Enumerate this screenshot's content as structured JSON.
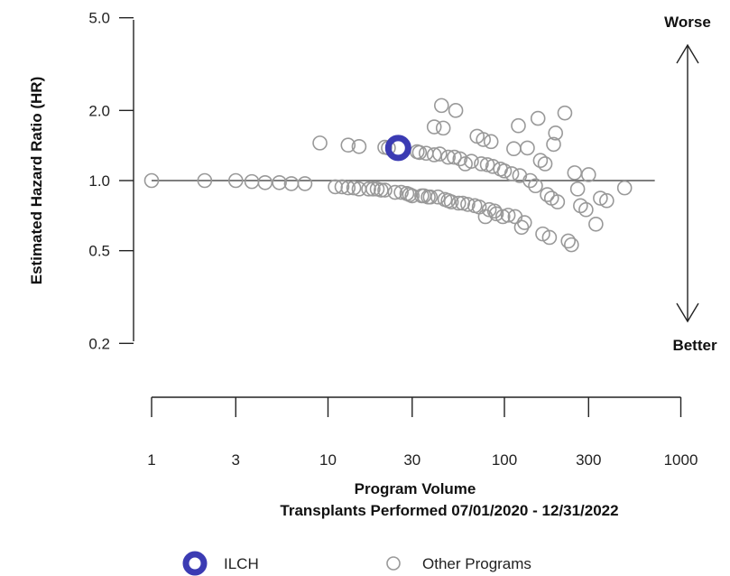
{
  "chart_data": {
    "type": "scatter",
    "x_scale": "log",
    "y_scale": "log",
    "ylabel": "Estimated Hazard Ratio (HR)",
    "xlabel": "Program Volume",
    "xlabel_sub": "Transplants Performed 07/01/2020 - 12/31/2022",
    "y_ticks": [
      {
        "value": 5.0,
        "label": "5.0"
      },
      {
        "value": 2.0,
        "label": "2.0"
      },
      {
        "value": 1.0,
        "label": "1.0"
      },
      {
        "value": 0.5,
        "label": "0.5"
      },
      {
        "value": 0.2,
        "label": "0.2"
      }
    ],
    "x_ticks": [
      {
        "value": 1,
        "label": "1"
      },
      {
        "value": 3,
        "label": "3"
      },
      {
        "value": 10,
        "label": "10"
      },
      {
        "value": 30,
        "label": "30"
      },
      {
        "value": 100,
        "label": "100"
      },
      {
        "value": 300,
        "label": "300"
      },
      {
        "value": 1000,
        "label": "1000"
      }
    ],
    "reference_line": {
      "y": 1.0,
      "x_from": 1,
      "x_to": 500
    },
    "annotation_top": "Worse",
    "annotation_bottom": "Better",
    "series": [
      {
        "name": "ILCH",
        "color": "#3b3bb3",
        "points": [
          {
            "x": 25,
            "y": 1.38
          }
        ]
      },
      {
        "name": "Other Programs",
        "color": "#999999",
        "points": [
          {
            "x": 1,
            "y": 1.0
          },
          {
            "x": 2,
            "y": 1.0
          },
          {
            "x": 3,
            "y": 1.0
          },
          {
            "x": 3.7,
            "y": 0.99
          },
          {
            "x": 4.4,
            "y": 0.98
          },
          {
            "x": 5.3,
            "y": 0.98
          },
          {
            "x": 6.2,
            "y": 0.97
          },
          {
            "x": 7.4,
            "y": 0.97
          },
          {
            "x": 9,
            "y": 1.45
          },
          {
            "x": 11,
            "y": 0.94
          },
          {
            "x": 12,
            "y": 0.94
          },
          {
            "x": 13,
            "y": 0.93
          },
          {
            "x": 13,
            "y": 1.42
          },
          {
            "x": 14,
            "y": 0.93
          },
          {
            "x": 15,
            "y": 0.92
          },
          {
            "x": 15,
            "y": 1.4
          },
          {
            "x": 17,
            "y": 0.92
          },
          {
            "x": 18,
            "y": 0.92
          },
          {
            "x": 19,
            "y": 0.92
          },
          {
            "x": 20,
            "y": 0.91
          },
          {
            "x": 21,
            "y": 0.91
          },
          {
            "x": 21,
            "y": 1.39
          },
          {
            "x": 22,
            "y": 1.38
          },
          {
            "x": 24,
            "y": 0.89
          },
          {
            "x": 26,
            "y": 0.89
          },
          {
            "x": 28,
            "y": 0.88
          },
          {
            "x": 29,
            "y": 0.87
          },
          {
            "x": 30,
            "y": 0.86
          },
          {
            "x": 32,
            "y": 1.33
          },
          {
            "x": 33,
            "y": 1.32
          },
          {
            "x": 34,
            "y": 0.86
          },
          {
            "x": 35,
            "y": 0.86
          },
          {
            "x": 36,
            "y": 1.31
          },
          {
            "x": 37,
            "y": 0.85
          },
          {
            "x": 38,
            "y": 0.85
          },
          {
            "x": 40,
            "y": 1.29
          },
          {
            "x": 40,
            "y": 1.7
          },
          {
            "x": 42,
            "y": 0.85
          },
          {
            "x": 43,
            "y": 1.3
          },
          {
            "x": 44,
            "y": 2.1
          },
          {
            "x": 45,
            "y": 1.68
          },
          {
            "x": 46,
            "y": 0.83
          },
          {
            "x": 48,
            "y": 0.82
          },
          {
            "x": 48,
            "y": 1.26
          },
          {
            "x": 50,
            "y": 0.81
          },
          {
            "x": 52,
            "y": 1.26
          },
          {
            "x": 53,
            "y": 2.0
          },
          {
            "x": 55,
            "y": 0.8
          },
          {
            "x": 56,
            "y": 1.24
          },
          {
            "x": 58,
            "y": 0.8
          },
          {
            "x": 60,
            "y": 1.18
          },
          {
            "x": 62,
            "y": 0.79
          },
          {
            "x": 65,
            "y": 1.21
          },
          {
            "x": 68,
            "y": 0.78
          },
          {
            "x": 70,
            "y": 1.55
          },
          {
            "x": 72,
            "y": 0.77
          },
          {
            "x": 74,
            "y": 1.18
          },
          {
            "x": 76,
            "y": 1.5
          },
          {
            "x": 78,
            "y": 0.7
          },
          {
            "x": 80,
            "y": 1.17
          },
          {
            "x": 82,
            "y": 0.75
          },
          {
            "x": 84,
            "y": 1.47
          },
          {
            "x": 86,
            "y": 1.15
          },
          {
            "x": 88,
            "y": 0.74
          },
          {
            "x": 90,
            "y": 0.72
          },
          {
            "x": 95,
            "y": 1.12
          },
          {
            "x": 98,
            "y": 0.7
          },
          {
            "x": 100,
            "y": 1.1
          },
          {
            "x": 105,
            "y": 0.71
          },
          {
            "x": 110,
            "y": 1.07
          },
          {
            "x": 113,
            "y": 1.37
          },
          {
            "x": 115,
            "y": 0.7
          },
          {
            "x": 120,
            "y": 1.72
          },
          {
            "x": 122,
            "y": 1.05
          },
          {
            "x": 125,
            "y": 0.63
          },
          {
            "x": 130,
            "y": 0.66
          },
          {
            "x": 135,
            "y": 1.38
          },
          {
            "x": 140,
            "y": 1.0
          },
          {
            "x": 150,
            "y": 0.95
          },
          {
            "x": 155,
            "y": 1.85
          },
          {
            "x": 160,
            "y": 1.22
          },
          {
            "x": 165,
            "y": 0.59
          },
          {
            "x": 170,
            "y": 1.18
          },
          {
            "x": 175,
            "y": 0.87
          },
          {
            "x": 180,
            "y": 0.57
          },
          {
            "x": 185,
            "y": 0.84
          },
          {
            "x": 190,
            "y": 1.43
          },
          {
            "x": 195,
            "y": 1.6
          },
          {
            "x": 200,
            "y": 0.81
          },
          {
            "x": 220,
            "y": 1.95
          },
          {
            "x": 230,
            "y": 0.55
          },
          {
            "x": 240,
            "y": 0.53
          },
          {
            "x": 250,
            "y": 1.08
          },
          {
            "x": 260,
            "y": 0.92
          },
          {
            "x": 270,
            "y": 0.78
          },
          {
            "x": 290,
            "y": 0.75
          },
          {
            "x": 300,
            "y": 1.06
          },
          {
            "x": 330,
            "y": 0.65
          },
          {
            "x": 350,
            "y": 0.84
          },
          {
            "x": 380,
            "y": 0.82
          },
          {
            "x": 480,
            "y": 0.93
          }
        ]
      }
    ]
  },
  "legend": {
    "items": [
      {
        "label": "ILCH"
      },
      {
        "label": "Other Programs"
      }
    ]
  }
}
